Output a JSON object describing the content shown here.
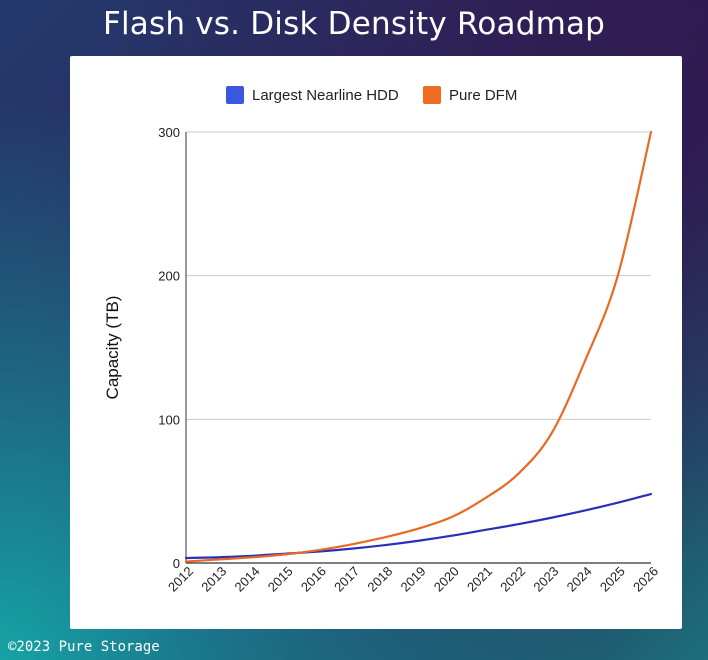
{
  "title": "Flash vs. Disk Density Roadmap",
  "footer": "©2023 Pure Storage",
  "chart_data": {
    "type": "line",
    "ylabel": "Capacity (TB)",
    "xlabel": "",
    "ylim": [
      0,
      300
    ],
    "yticks": [
      0,
      100,
      200,
      300
    ],
    "grid": true,
    "legend": "top-center",
    "x": [
      "2012",
      "2013",
      "2014",
      "2015",
      "2016",
      "2017",
      "2018",
      "2019",
      "2020",
      "2021",
      "2022",
      "2023",
      "2024",
      "2025",
      "2026"
    ],
    "series": [
      {
        "name": "Largest Nearline HDD",
        "color": "#2a2fb8",
        "legend_color": "#3b57e0",
        "values": [
          3.5,
          4,
          5,
          6.5,
          8,
          10,
          12.5,
          15.5,
          19,
          23,
          27,
          31.5,
          36.5,
          42,
          48
        ]
      },
      {
        "name": "Pure DFM",
        "color": "#e86a22",
        "legend_color": "#f06a22",
        "values": [
          1,
          2.5,
          4,
          6,
          9,
          13,
          18,
          24,
          32,
          45,
          62,
          90,
          140,
          200,
          300
        ]
      }
    ]
  }
}
